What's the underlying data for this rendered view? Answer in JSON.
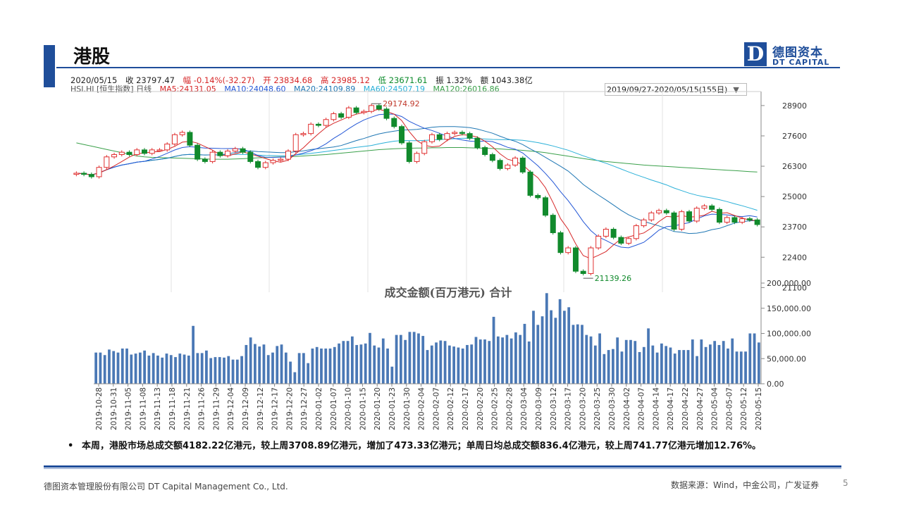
{
  "page": {
    "title": "港股",
    "page_number": "5"
  },
  "logo": {
    "cn": "德图资本",
    "en": "DT CAPITAL",
    "mark": "D"
  },
  "info": {
    "line1": [
      "2020/05/15",
      "收 23797.47",
      "幅 -0.14%(-32.27)",
      "开 23834.68",
      "高 23985.12",
      "低 23671.61",
      "振 1.32%",
      "额 1043.38亿"
    ],
    "line2": [
      "HSI.HI [恒生指数] 日线",
      "MA5:24131.05",
      "MA10:24048.60",
      "MA20:24109.89",
      "MA60:24507.19",
      "MA120:26016.86"
    ],
    "range": "2019/09/27-2020/05/15(155日)",
    "colors": {
      "ma5": "#d62728",
      "ma10": "#2457d6",
      "ma20": "#1f77b4",
      "ma60": "#2ab0d8",
      "ma120": "#3aa04a"
    }
  },
  "bullet": "本周，港股市场总成交额4182.22亿港元，较上周3708.89亿港元，增加了473.33亿港元；单周日均总成交额836.4亿港元，较上周741.77亿港元增加12.76%。",
  "footer": {
    "left": "德图资本管理股份有限公司 DT Capital Management Co., Ltd.",
    "right": "数据来源：Wind，中金公司，广发证券"
  },
  "chart_data": [
    {
      "type": "candlestick",
      "title": "",
      "y_ticks": [
        21100,
        22400,
        23700,
        25000,
        26300,
        27600,
        28900
      ],
      "ylim": [
        20900,
        29500
      ],
      "annotations": {
        "high": "29174.92",
        "low": "21139.26"
      },
      "grid": false,
      "closes": [
        26000,
        25950,
        25850,
        26250,
        26700,
        26800,
        26900,
        26800,
        27000,
        26850,
        27000,
        27000,
        27250,
        27650,
        27750,
        27200,
        26600,
        26500,
        26900,
        26750,
        26950,
        27050,
        26900,
        26500,
        26250,
        26450,
        26550,
        26600,
        26950,
        27650,
        27700,
        28100,
        28050,
        28300,
        28550,
        28400,
        28800,
        28600,
        28650,
        28900,
        28750,
        28350,
        28000,
        27300,
        26500,
        26850,
        27350,
        27650,
        27450,
        27700,
        27750,
        27700,
        27500,
        27100,
        26800,
        26550,
        26200,
        26350,
        26650,
        26050,
        25050,
        24950,
        24200,
        23450,
        22600,
        22800,
        21800,
        21700,
        22800,
        23300,
        23600,
        23250,
        23000,
        23200,
        23750,
        24000,
        24300,
        24400,
        24300,
        23600,
        24350,
        23950,
        24500,
        24600,
        24450,
        23900,
        24100,
        23900,
        24050,
        24000,
        23800
      ],
      "ma120": [
        27300,
        27230,
        27160,
        27090,
        27020,
        26950,
        26880,
        26810,
        26740,
        26700,
        26680,
        26670,
        26660,
        26650,
        26640,
        26630,
        26620,
        26610,
        26600,
        26600,
        26600,
        26610,
        26620,
        26640,
        26660,
        26670,
        26690,
        26700,
        26710,
        26720,
        26740,
        26760,
        26780,
        26800,
        26830,
        26860,
        26890,
        26920,
        26950,
        26980,
        27010,
        27030,
        27050,
        27060,
        27070,
        27080,
        27080,
        27090,
        27090,
        27100,
        27100,
        27100,
        27090,
        27080,
        27070,
        27060,
        27040,
        27020,
        27000,
        26980,
        26950,
        26920,
        26880,
        26830,
        26780,
        26730,
        26680,
        26630,
        26580,
        26540,
        26500,
        26470,
        26440,
        26410,
        26380,
        26350,
        26330,
        26310,
        26290,
        26270,
        26250,
        26230,
        26210,
        26190,
        26170,
        26150,
        26130,
        26110,
        26090,
        26070,
        26050
      ]
    },
    {
      "type": "bar",
      "title": "成交金额(百万港元) 合计",
      "y_ticks": [
        "0.00",
        "50,000.00",
        "100,000.00",
        "150,000.00",
        "200,000.00"
      ],
      "ylim": [
        0,
        200000
      ],
      "x_tick_labels": [
        "2019-10-28",
        "2019-10-31",
        "2019-11-05",
        "2019-11-08",
        "2019-11-13",
        "2019-11-18",
        "2019-11-21",
        "2019-11-26",
        "2019-11-29",
        "2019-12-04",
        "2019-12-09",
        "2019-12-12",
        "2019-12-17",
        "2019-12-20",
        "2019-12-27",
        "2020-01-02",
        "2020-01-07",
        "2020-01-10",
        "2020-01-15",
        "2020-01-20",
        "2020-01-23",
        "2020-01-30",
        "2020-02-04",
        "2020-02-07",
        "2020-02-12",
        "2020-02-17",
        "2020-02-20",
        "2020-02-25",
        "2020-02-28",
        "2020-03-04",
        "2020-03-09",
        "2020-03-12",
        "2020-03-17",
        "2020-03-20",
        "2020-03-25",
        "2020-03-30",
        "2020-04-02",
        "2020-04-07",
        "2020-04-14",
        "2020-04-17",
        "2020-04-22",
        "2020-04-27",
        "2020-05-04",
        "2020-05-07",
        "2020-05-12",
        "2020-05-15"
      ],
      "values": [
        62000,
        62000,
        57000,
        68000,
        65000,
        62000,
        70000,
        70000,
        58000,
        60000,
        62000,
        66000,
        56000,
        61000,
        56000,
        52000,
        60000,
        57000,
        53000,
        60000,
        58000,
        56000,
        115000,
        61000,
        61000,
        66000,
        51000,
        53000,
        53000,
        52000,
        55000,
        48000,
        48000,
        55000,
        77000,
        92000,
        79000,
        74000,
        78000,
        57000,
        62000,
        75000,
        78000,
        62000,
        44000,
        23000,
        61000,
        61000,
        41000,
        70000,
        73000,
        70000,
        70000,
        70000,
        73000,
        80000,
        85000,
        85000,
        94000,
        77000,
        78000,
        80000,
        101000,
        76000,
        72000,
        90000,
        70000,
        34000,
        97000,
        97000,
        87000,
        103000,
        103000,
        100000,
        95000,
        67000,
        76000,
        82000,
        86000,
        85000,
        76000,
        74000,
        72000,
        70000,
        77000,
        78000,
        93000,
        88000,
        88000,
        85000,
        133000,
        94000,
        92000,
        97000,
        90000,
        102000,
        97000,
        119000,
        84000,
        145000,
        117000,
        134000,
        180000,
        146000,
        131000,
        168000,
        145000,
        152000,
        117000,
        118000,
        117000,
        97000,
        94000,
        76000,
        100000,
        59000,
        67000,
        69000,
        92000,
        64000,
        87000,
        87000,
        85000,
        63000,
        73000,
        110000,
        76000,
        62000,
        80000,
        75000,
        72000,
        60000,
        67000,
        67000,
        67000,
        88000,
        55000,
        88000,
        73000,
        78000,
        85000,
        77000,
        85000,
        70000,
        90000,
        64000,
        64000,
        64000,
        100000,
        100000,
        82000
      ]
    }
  ]
}
